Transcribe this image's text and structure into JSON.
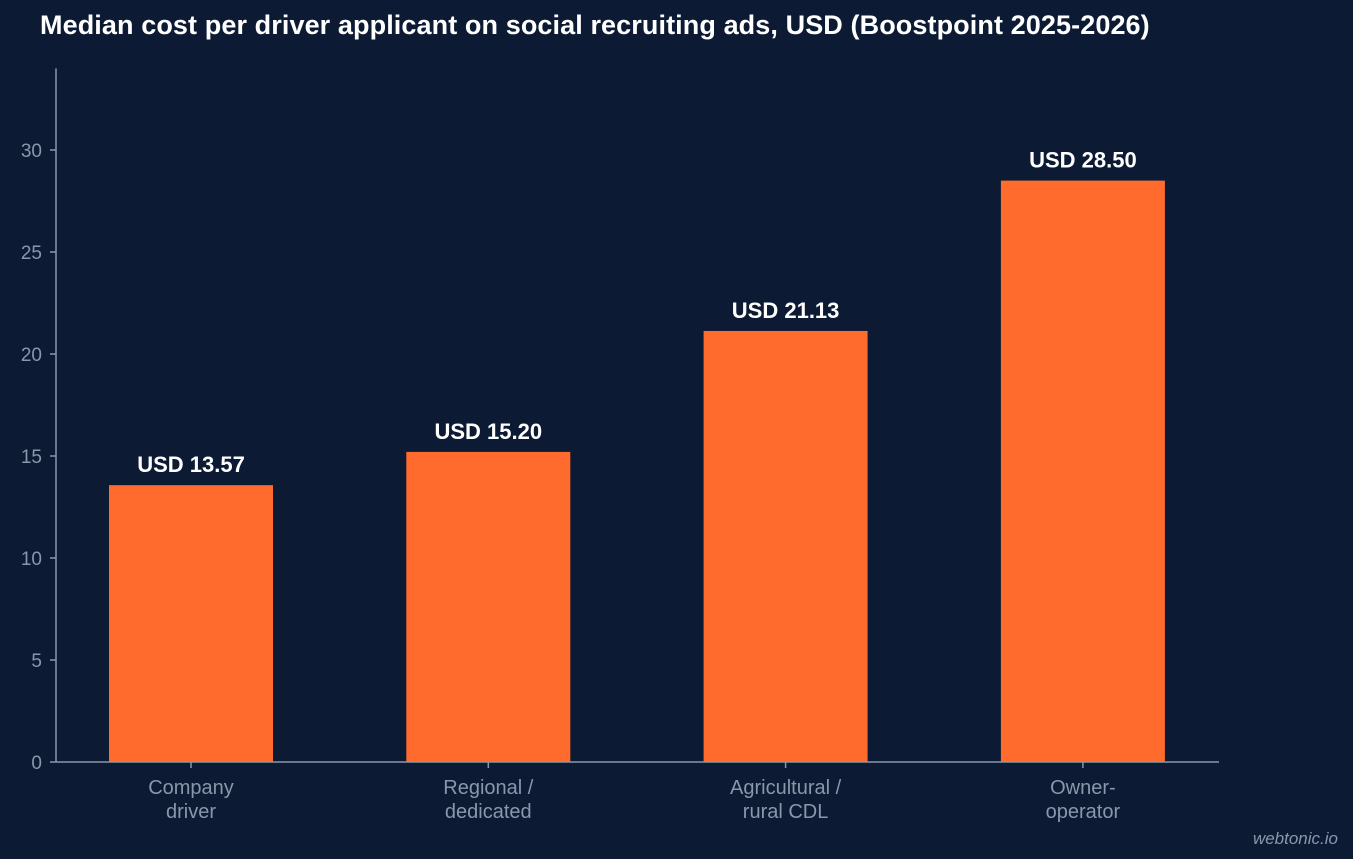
{
  "chart_data": {
    "type": "bar",
    "title": "Median cost per driver applicant on social recruiting ads, USD (Boostpoint 2025-2026)",
    "categories": [
      [
        "Company",
        "driver"
      ],
      [
        "Regional /",
        "dedicated"
      ],
      [
        "Agricultural /",
        "rural CDL"
      ],
      [
        "Owner-",
        "operator"
      ]
    ],
    "values": [
      13.57,
      15.2,
      21.13,
      28.5
    ],
    "data_labels": [
      "USD 13.57",
      "USD 15.20",
      "USD 21.13",
      "USD 28.50"
    ],
    "yticks": [
      0,
      5,
      10,
      15,
      20,
      25,
      30
    ],
    "ylim": [
      0,
      34
    ],
    "xlabel": "",
    "ylabel": "",
    "grid": false,
    "colors": {
      "background": "#0c1b33",
      "bar": "#ff6b2c",
      "axis": "#8a97ab",
      "tick_text": "#8a97ab",
      "data_label": "#ffffff"
    }
  },
  "watermark": "webtonic.io"
}
